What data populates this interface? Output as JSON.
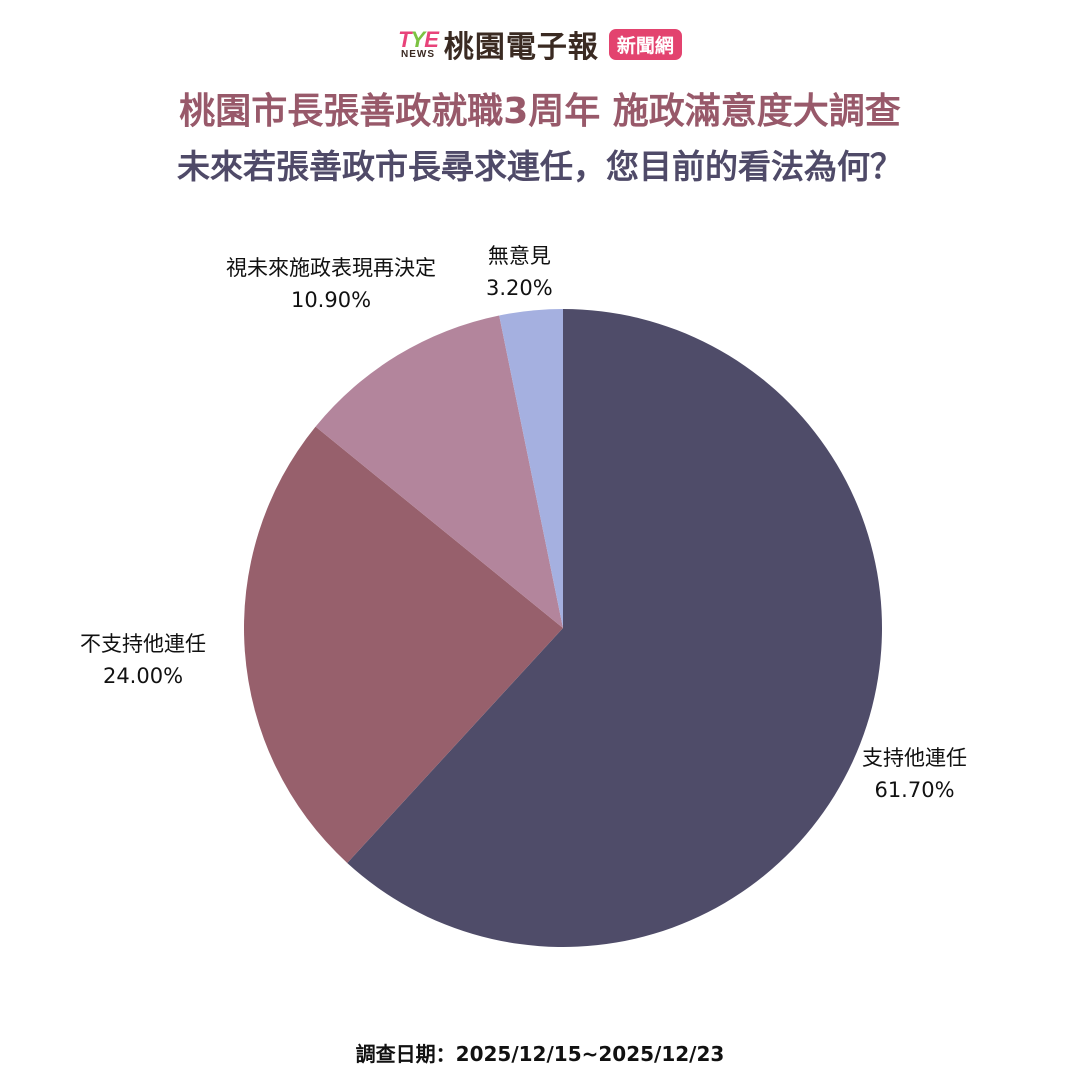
{
  "header": {
    "logo_letters": [
      "T",
      "Y",
      "E"
    ],
    "logo_sub": "NEWS",
    "logo_name": "桃園電子報",
    "logo_badge": "新聞網"
  },
  "title": "桃園市長張善政就職3周年  施政滿意度大調查",
  "subtitle": "未來若張善政市長尋求連任，您目前的看法為何？",
  "footer": "調查日期：2025/12/15~2025/12/23",
  "colors": {
    "title": "#98596a",
    "subtitle": "#4f4a68",
    "support": "#4f4c69",
    "oppose": "#97606c",
    "undecided": "#b3859c",
    "no_opinion": "#a5b0e0",
    "badge": "#e3436f"
  },
  "chart_data": {
    "type": "pie",
    "title": "未來若張善政市長尋求連任，您目前的看法為何？",
    "categories": [
      "支持他連任",
      "不支持他連任",
      "視未來施政表現再決定",
      "無意見"
    ],
    "values": [
      61.7,
      24.0,
      10.9,
      3.2
    ],
    "value_labels": [
      "61.70%",
      "24.00%",
      "10.90%",
      "3.20%"
    ],
    "start_angle": "12 o'clock, clockwise",
    "legend": "none (direct labels)"
  }
}
